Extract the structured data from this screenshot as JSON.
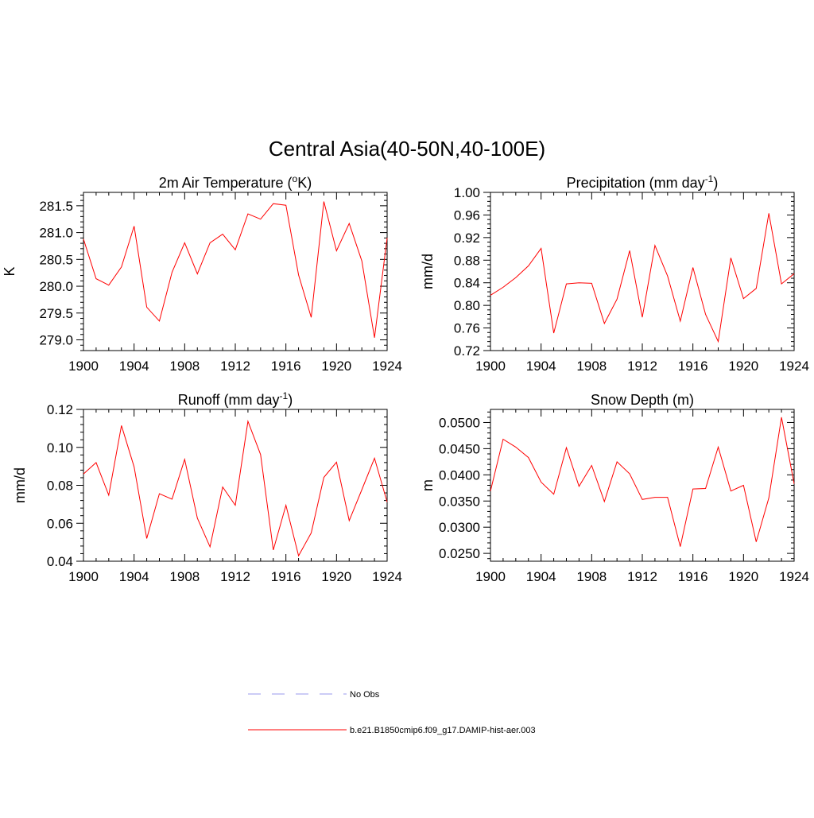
{
  "figure": {
    "title": "Central Asia(40-50N,40-100E)"
  },
  "legend": {
    "items": [
      {
        "label": "No Obs",
        "color": "#9a9aee",
        "dash": true
      },
      {
        "label": "b.e21.B1850cmip6.f09_g17.DAMIP-hist-aer.003",
        "color": "#ff0000",
        "dash": false
      }
    ]
  },
  "chart_data": [
    {
      "type": "line",
      "title": "2m Air Temperature (",
      "title_sup": "o",
      "title_end": "K)",
      "ylabel": "K",
      "xlim": [
        1900,
        1924
      ],
      "ylim": [
        278.8,
        281.75
      ],
      "xticks": [
        1900,
        1904,
        1908,
        1912,
        1916,
        1920,
        1924
      ],
      "xtick_labels": [
        "1900",
        "1904",
        "1908",
        "1912",
        "1916",
        "1920",
        "1924"
      ],
      "yticks": [
        279.0,
        279.5,
        280.0,
        280.5,
        281.0,
        281.5
      ],
      "ytick_labels": [
        "279.0",
        "279.5",
        "280.0",
        "280.5",
        "281.0",
        "281.5"
      ],
      "series": [
        {
          "color": "#ff0000",
          "x": [
            1900,
            1901,
            1902,
            1903,
            1904,
            1905,
            1906,
            1907,
            1908,
            1909,
            1910,
            1911,
            1912,
            1913,
            1914,
            1915,
            1916,
            1917,
            1918,
            1919,
            1920,
            1921,
            1922,
            1923,
            1924
          ],
          "values": [
            280.88,
            280.14,
            280.02,
            280.36,
            281.12,
            279.61,
            279.35,
            280.26,
            280.81,
            280.23,
            280.81,
            280.97,
            280.68,
            281.35,
            281.25,
            281.54,
            281.51,
            280.21,
            279.42,
            281.58,
            280.66,
            281.17,
            280.47,
            279.04,
            280.9
          ]
        }
      ]
    },
    {
      "type": "line",
      "title": "Precipitation (mm day",
      "title_sup": "-1",
      "title_end": ")",
      "ylabel": "mm/d",
      "xlim": [
        1900,
        1924
      ],
      "ylim": [
        0.72,
        1.0
      ],
      "xticks": [
        1900,
        1904,
        1908,
        1912,
        1916,
        1920,
        1924
      ],
      "xtick_labels": [
        "1900",
        "1904",
        "1908",
        "1912",
        "1916",
        "1920",
        "1924"
      ],
      "yticks": [
        0.72,
        0.76,
        0.8,
        0.84,
        0.88,
        0.92,
        0.96,
        1.0
      ],
      "ytick_labels": [
        "0.72",
        "0.76",
        "0.80",
        "0.84",
        "0.88",
        "0.92",
        "0.96",
        "1.00"
      ],
      "series": [
        {
          "color": "#ff0000",
          "x": [
            1900,
            1901,
            1902,
            1903,
            1904,
            1905,
            1906,
            1907,
            1908,
            1909,
            1910,
            1911,
            1912,
            1913,
            1914,
            1915,
            1916,
            1917,
            1918,
            1919,
            1920,
            1921,
            1922,
            1923,
            1924
          ],
          "values": [
            0.818,
            0.832,
            0.849,
            0.87,
            0.901,
            0.751,
            0.838,
            0.84,
            0.839,
            0.768,
            0.811,
            0.897,
            0.779,
            0.906,
            0.852,
            0.772,
            0.867,
            0.784,
            0.736,
            0.884,
            0.812,
            0.83,
            0.963,
            0.838,
            0.856
          ]
        }
      ]
    },
    {
      "type": "line",
      "title": "Runoff (mm day",
      "title_sup": "-1",
      "title_end": ")",
      "ylabel": "mm/d",
      "xlim": [
        1900,
        1924
      ],
      "ylim": [
        0.04,
        0.12
      ],
      "xticks": [
        1900,
        1904,
        1908,
        1912,
        1916,
        1920,
        1924
      ],
      "xtick_labels": [
        "1900",
        "1904",
        "1908",
        "1912",
        "1916",
        "1920",
        "1924"
      ],
      "yticks": [
        0.04,
        0.06,
        0.08,
        0.1,
        0.12
      ],
      "ytick_labels": [
        "0.04",
        "0.06",
        "0.08",
        "0.10",
        "0.12"
      ],
      "series": [
        {
          "color": "#ff0000",
          "x": [
            1900,
            1901,
            1902,
            1903,
            1904,
            1905,
            1906,
            1907,
            1908,
            1909,
            1910,
            1911,
            1912,
            1913,
            1914,
            1915,
            1916,
            1917,
            1918,
            1919,
            1920,
            1921,
            1922,
            1923,
            1924
          ],
          "values": [
            0.086,
            0.092,
            0.0748,
            0.1115,
            0.0897,
            0.052,
            0.0756,
            0.0727,
            0.0937,
            0.0627,
            0.0476,
            0.0791,
            0.0695,
            0.1137,
            0.0962,
            0.0459,
            0.0695,
            0.0429,
            0.0549,
            0.0842,
            0.0922,
            0.0614,
            0.0777,
            0.0943,
            0.0712
          ]
        }
      ]
    },
    {
      "type": "line",
      "title": "Snow Depth (m)",
      "title_sup": "",
      "title_end": "",
      "ylabel": "m",
      "xlim": [
        1900,
        1924
      ],
      "ylim": [
        0.0235,
        0.0525
      ],
      "xticks": [
        1900,
        1904,
        1908,
        1912,
        1916,
        1920,
        1924
      ],
      "xtick_labels": [
        "1900",
        "1904",
        "1908",
        "1912",
        "1916",
        "1920",
        "1924"
      ],
      "yticks": [
        0.025,
        0.03,
        0.035,
        0.04,
        0.045,
        0.05
      ],
      "ytick_labels": [
        "0.0250",
        "0.0300",
        "0.0350",
        "0.0400",
        "0.0450",
        "0.0500"
      ],
      "series": [
        {
          "color": "#ff0000",
          "x": [
            1900,
            1901,
            1902,
            1903,
            1904,
            1905,
            1906,
            1907,
            1908,
            1909,
            1910,
            1911,
            1912,
            1913,
            1914,
            1915,
            1916,
            1917,
            1918,
            1919,
            1920,
            1921,
            1922,
            1923,
            1924
          ],
          "values": [
            0.0369,
            0.0468,
            0.0453,
            0.0433,
            0.0386,
            0.0363,
            0.0452,
            0.0378,
            0.0418,
            0.0349,
            0.0425,
            0.0402,
            0.0353,
            0.0357,
            0.0357,
            0.0263,
            0.0373,
            0.0374,
            0.0453,
            0.0369,
            0.038,
            0.0272,
            0.0356,
            0.051,
            0.0383
          ]
        }
      ]
    }
  ]
}
